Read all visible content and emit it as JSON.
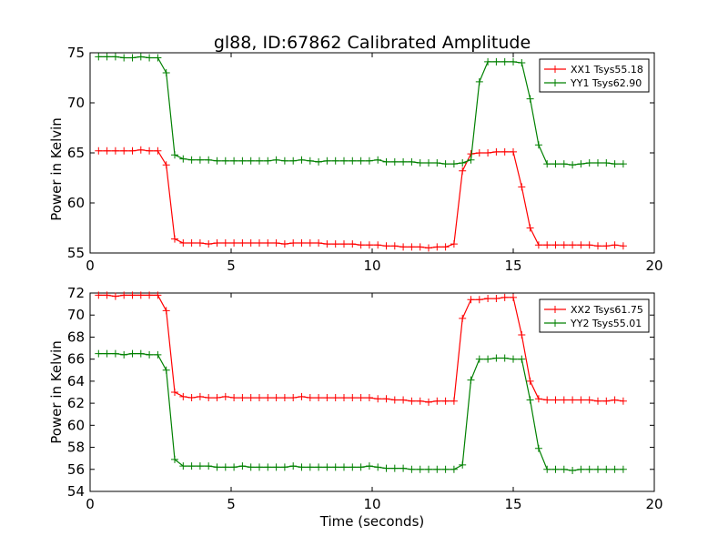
{
  "chart_data": [
    {
      "type": "line",
      "title": "gl88, ID:67862 Calibrated Amplitude",
      "xlabel": "",
      "ylabel": "Power in Kelvin",
      "xlim": [
        0,
        20
      ],
      "ylim": [
        55,
        75
      ],
      "xticks": [
        "0",
        "5",
        "10",
        "15",
        "20"
      ],
      "yticks": [
        "55",
        "60",
        "65",
        "70",
        "75"
      ],
      "grid": false,
      "legend_position": "top-right",
      "x": [
        0.3,
        0.6,
        0.9,
        1.2,
        1.5,
        1.8,
        2.1,
        2.4,
        2.7,
        3.0,
        3.3,
        3.6,
        3.9,
        4.2,
        4.5,
        4.8,
        5.1,
        5.4,
        5.7,
        6.0,
        6.3,
        6.6,
        6.9,
        7.2,
        7.5,
        7.8,
        8.1,
        8.4,
        8.7,
        9.0,
        9.3,
        9.6,
        9.9,
        10.2,
        10.5,
        10.8,
        11.1,
        11.4,
        11.7,
        12.0,
        12.3,
        12.6,
        12.9,
        13.2,
        13.5,
        13.8,
        14.1,
        14.4,
        14.7,
        15.0,
        15.3,
        15.6,
        15.9,
        16.2,
        16.5,
        16.8,
        17.1,
        17.4,
        17.7,
        18.0,
        18.3,
        18.6,
        18.9
      ],
      "series": [
        {
          "name": "XX1 Tsys55.18",
          "color": "#ff0000",
          "values": [
            65.2,
            65.2,
            65.2,
            65.2,
            65.2,
            65.3,
            65.2,
            65.2,
            63.8,
            56.4,
            56.0,
            56.0,
            56.0,
            55.9,
            56.0,
            56.0,
            56.0,
            56.0,
            56.0,
            56.0,
            56.0,
            56.0,
            55.9,
            56.0,
            56.0,
            56.0,
            56.0,
            55.9,
            55.9,
            55.9,
            55.9,
            55.8,
            55.8,
            55.8,
            55.7,
            55.7,
            55.6,
            55.6,
            55.6,
            55.5,
            55.6,
            55.6,
            55.9,
            63.2,
            64.9,
            65.0,
            65.0,
            65.1,
            65.1,
            65.1,
            61.6,
            57.5,
            55.8,
            55.8,
            55.8,
            55.8,
            55.8,
            55.8,
            55.8,
            55.7,
            55.7,
            55.8,
            55.7
          ]
        },
        {
          "name": "YY1 Tsys62.90",
          "color": "#008000",
          "values": [
            74.6,
            74.6,
            74.6,
            74.5,
            74.5,
            74.6,
            74.5,
            74.5,
            73.0,
            64.8,
            64.4,
            64.3,
            64.3,
            64.3,
            64.2,
            64.2,
            64.2,
            64.2,
            64.2,
            64.2,
            64.2,
            64.3,
            64.2,
            64.2,
            64.3,
            64.2,
            64.1,
            64.2,
            64.2,
            64.2,
            64.2,
            64.2,
            64.2,
            64.3,
            64.1,
            64.1,
            64.1,
            64.1,
            64.0,
            64.0,
            64.0,
            63.9,
            63.9,
            64.0,
            64.3,
            72.1,
            74.1,
            74.1,
            74.1,
            74.1,
            74.0,
            70.4,
            65.8,
            63.9,
            63.9,
            63.9,
            63.8,
            63.9,
            64.0,
            64.0,
            64.0,
            63.9,
            63.9
          ]
        }
      ]
    },
    {
      "type": "line",
      "title": "",
      "xlabel": "Time (seconds)",
      "ylabel": "Power in Kelvin",
      "xlim": [
        0,
        20
      ],
      "ylim": [
        54,
        72
      ],
      "xticks": [
        "0",
        "5",
        "10",
        "15",
        "20"
      ],
      "yticks": [
        "54",
        "56",
        "58",
        "60",
        "62",
        "64",
        "66",
        "68",
        "70",
        "72"
      ],
      "grid": false,
      "legend_position": "top-right",
      "x": [
        0.3,
        0.6,
        0.9,
        1.2,
        1.5,
        1.8,
        2.1,
        2.4,
        2.7,
        3.0,
        3.3,
        3.6,
        3.9,
        4.2,
        4.5,
        4.8,
        5.1,
        5.4,
        5.7,
        6.0,
        6.3,
        6.6,
        6.9,
        7.2,
        7.5,
        7.8,
        8.1,
        8.4,
        8.7,
        9.0,
        9.3,
        9.6,
        9.9,
        10.2,
        10.5,
        10.8,
        11.1,
        11.4,
        11.7,
        12.0,
        12.3,
        12.6,
        12.9,
        13.2,
        13.5,
        13.8,
        14.1,
        14.4,
        14.7,
        15.0,
        15.3,
        15.6,
        15.9,
        16.2,
        16.5,
        16.8,
        17.1,
        17.4,
        17.7,
        18.0,
        18.3,
        18.6,
        18.9
      ],
      "series": [
        {
          "name": "XX2 Tsys61.75",
          "color": "#ff0000",
          "values": [
            71.8,
            71.8,
            71.7,
            71.8,
            71.8,
            71.8,
            71.8,
            71.8,
            70.4,
            63.0,
            62.6,
            62.5,
            62.6,
            62.5,
            62.5,
            62.6,
            62.5,
            62.5,
            62.5,
            62.5,
            62.5,
            62.5,
            62.5,
            62.5,
            62.6,
            62.5,
            62.5,
            62.5,
            62.5,
            62.5,
            62.5,
            62.5,
            62.5,
            62.4,
            62.4,
            62.3,
            62.3,
            62.2,
            62.2,
            62.1,
            62.2,
            62.2,
            62.2,
            69.7,
            71.4,
            71.4,
            71.5,
            71.5,
            71.6,
            71.6,
            68.2,
            64.0,
            62.4,
            62.3,
            62.3,
            62.3,
            62.3,
            62.3,
            62.3,
            62.2,
            62.2,
            62.3,
            62.2
          ]
        },
        {
          "name": "YY2 Tsys55.01",
          "color": "#008000",
          "values": [
            66.5,
            66.5,
            66.5,
            66.4,
            66.5,
            66.5,
            66.4,
            66.4,
            65.0,
            56.9,
            56.3,
            56.3,
            56.3,
            56.3,
            56.2,
            56.2,
            56.2,
            56.3,
            56.2,
            56.2,
            56.2,
            56.2,
            56.2,
            56.3,
            56.2,
            56.2,
            56.2,
            56.2,
            56.2,
            56.2,
            56.2,
            56.2,
            56.3,
            56.2,
            56.1,
            56.1,
            56.1,
            56.0,
            56.0,
            56.0,
            56.0,
            56.0,
            56.0,
            56.4,
            64.1,
            66.0,
            66.0,
            66.1,
            66.1,
            66.0,
            66.0,
            62.3,
            57.9,
            56.0,
            56.0,
            56.0,
            55.9,
            56.0,
            56.0,
            56.0,
            56.0,
            56.0,
            56.0
          ]
        }
      ]
    }
  ]
}
